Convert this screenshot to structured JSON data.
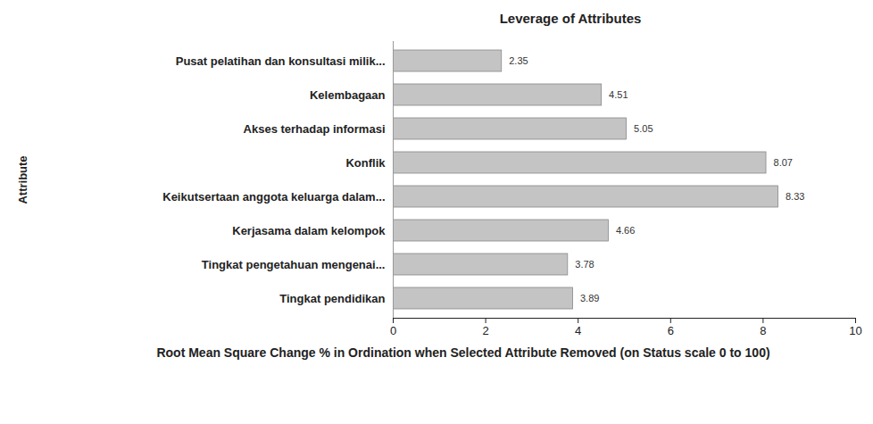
{
  "chart_data": {
    "type": "bar",
    "orientation": "horizontal",
    "title": "Leverage of Attributes",
    "x_label": "Root Mean Square Change % in Ordination when Selected Attribute Removed (on Status scale 0 to 100)",
    "y_label": "Attribute",
    "categories": [
      "Pusat pelatihan dan konsultasi milik...",
      "Kelembagaan",
      "Akses terhadap informasi",
      "Konflik",
      "Keikutsertaan anggota keluarga dalam...",
      "Kerjasama dalam kelompok",
      "Tingkat pengetahuan mengenai...",
      "Tingkat pendidikan"
    ],
    "values": [
      2.35,
      4.51,
      5.05,
      8.07,
      8.33,
      4.66,
      3.78,
      3.89
    ],
    "color": "#c4c4c4",
    "xlim": [
      0,
      10
    ],
    "xticks": [
      0,
      2,
      4,
      6,
      8,
      10
    ],
    "grid": false,
    "data_labels": true
  }
}
